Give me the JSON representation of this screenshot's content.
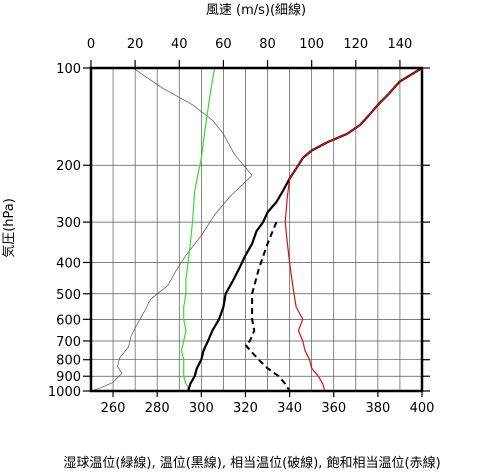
{
  "chart_data": {
    "type": "line",
    "title_top": "風速 (m/s)(細線)",
    "ylabel": "気圧(hPa)",
    "xlabel_bottom": "湿球温位(緑線), 温位(黒線), 相当温位(破線), 飽和相当温位(赤線)",
    "y_scale": "log",
    "y_range_hpa": [
      1000,
      100
    ],
    "y_ticks": [
      {
        "value": 100,
        "label": "100"
      },
      {
        "value": 200,
        "label": "200"
      },
      {
        "value": 300,
        "label": "300"
      },
      {
        "value": 400,
        "label": "400"
      },
      {
        "value": 500,
        "label": "500"
      },
      {
        "value": 600,
        "label": "600"
      },
      {
        "value": 700,
        "label": "700"
      },
      {
        "value": 800,
        "label": "800"
      },
      {
        "value": 900,
        "label": "900"
      },
      {
        "value": 1000,
        "label": "1000"
      }
    ],
    "x_bottom": {
      "min": 250,
      "max": 400,
      "ticks": [
        "260",
        "280",
        "300",
        "320",
        "340",
        "360",
        "380",
        "400"
      ]
    },
    "x_top": {
      "min": 0,
      "max": 150,
      "ticks": [
        "0",
        "20",
        "40",
        "60",
        "80",
        "100",
        "120",
        "140"
      ]
    },
    "grid": true,
    "series": [
      {
        "name": "風速",
        "axis": "top",
        "color": "#555555",
        "style": "thin",
        "points": [
          [
            19,
            100
          ],
          [
            32,
            115
          ],
          [
            46,
            130
          ],
          [
            55,
            145
          ],
          [
            60,
            160
          ],
          [
            65,
            185
          ],
          [
            73,
            215
          ],
          [
            63,
            250
          ],
          [
            56,
            285
          ],
          [
            50,
            330
          ],
          [
            43,
            380
          ],
          [
            38,
            430
          ],
          [
            35,
            470
          ],
          [
            27,
            520
          ],
          [
            24,
            570
          ],
          [
            21,
            620
          ],
          [
            18,
            680
          ],
          [
            17,
            730
          ],
          [
            13,
            790
          ],
          [
            12,
            840
          ],
          [
            14,
            880
          ],
          [
            10,
            940
          ],
          [
            4,
            980
          ],
          [
            0,
            1000
          ]
        ]
      },
      {
        "name": "湿球温位",
        "axis": "bottom",
        "color": "#33dd33",
        "style": "solid",
        "points": [
          [
            306,
            100
          ],
          [
            304,
            120
          ],
          [
            302,
            150
          ],
          [
            300,
            190
          ],
          [
            297,
            240
          ],
          [
            296,
            300
          ],
          [
            295,
            350
          ],
          [
            294,
            400
          ],
          [
            293,
            450
          ],
          [
            293,
            500
          ],
          [
            292,
            550
          ],
          [
            292,
            600
          ],
          [
            293,
            650
          ],
          [
            292,
            700
          ],
          [
            291,
            750
          ],
          [
            292,
            800
          ],
          [
            292,
            850
          ],
          [
            292,
            900
          ],
          [
            293,
            950
          ],
          [
            295,
            1000
          ]
        ]
      },
      {
        "name": "温位",
        "axis": "bottom",
        "color": "#000000",
        "style": "solid",
        "points": [
          [
            400,
            100
          ],
          [
            390,
            110
          ],
          [
            385,
            120
          ],
          [
            380,
            130
          ],
          [
            376,
            140
          ],
          [
            372,
            150
          ],
          [
            366,
            160
          ],
          [
            357,
            170
          ],
          [
            350,
            180
          ],
          [
            346,
            190
          ],
          [
            344,
            200
          ],
          [
            340,
            220
          ],
          [
            337,
            240
          ],
          [
            334,
            260
          ],
          [
            330,
            280
          ],
          [
            328,
            300
          ],
          [
            325,
            320
          ],
          [
            323,
            350
          ],
          [
            320,
            380
          ],
          [
            317,
            420
          ],
          [
            314,
            460
          ],
          [
            311,
            500
          ],
          [
            310,
            550
          ],
          [
            308,
            600
          ],
          [
            305,
            650
          ],
          [
            303,
            700
          ],
          [
            301,
            750
          ],
          [
            300,
            800
          ],
          [
            298,
            850
          ],
          [
            297,
            900
          ],
          [
            295,
            950
          ],
          [
            294,
            1000
          ]
        ]
      },
      {
        "name": "相当温位",
        "axis": "bottom",
        "color": "#000000",
        "style": "dashed",
        "points": [
          [
            334,
            300
          ],
          [
            330,
            350
          ],
          [
            326,
            420
          ],
          [
            323,
            500
          ],
          [
            323,
            600
          ],
          [
            324,
            650
          ],
          [
            322,
            700
          ],
          [
            320,
            720
          ],
          [
            323,
            760
          ],
          [
            326,
            800
          ],
          [
            330,
            850
          ],
          [
            335,
            900
          ],
          [
            338,
            950
          ],
          [
            340,
            1000
          ]
        ]
      },
      {
        "name": "飽和相当温位",
        "axis": "bottom",
        "color": "#dd1111",
        "style": "solid",
        "points": [
          [
            400,
            100
          ],
          [
            390,
            110
          ],
          [
            385,
            120
          ],
          [
            380,
            130
          ],
          [
            376,
            140
          ],
          [
            372,
            150
          ],
          [
            366,
            160
          ],
          [
            357,
            170
          ],
          [
            350,
            180
          ],
          [
            346,
            190
          ],
          [
            344,
            200
          ],
          [
            340,
            220
          ],
          [
            339,
            250
          ],
          [
            338,
            300
          ],
          [
            339,
            350
          ],
          [
            340,
            400
          ],
          [
            341,
            450
          ],
          [
            342,
            500
          ],
          [
            343,
            550
          ],
          [
            346,
            600
          ],
          [
            344,
            650
          ],
          [
            346,
            700
          ],
          [
            347,
            750
          ],
          [
            349,
            800
          ],
          [
            350,
            850
          ],
          [
            353,
            900
          ],
          [
            355,
            950
          ],
          [
            356,
            1000
          ]
        ]
      }
    ]
  }
}
